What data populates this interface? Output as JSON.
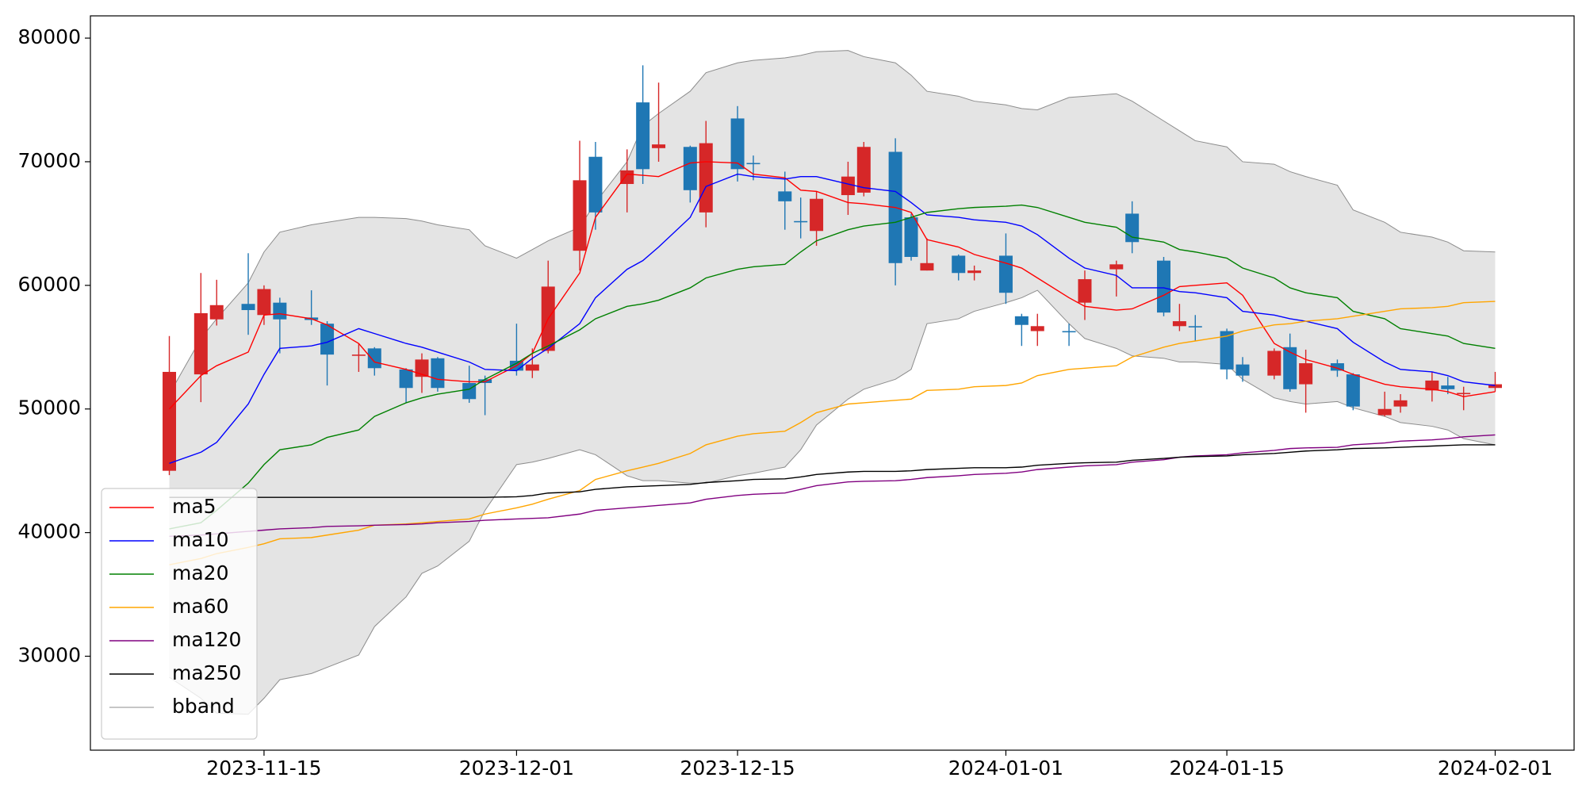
{
  "chart_data": {
    "type": "candlestick",
    "up_color": "#d62728",
    "down_color": "#1f77b4",
    "x": [
      "2023-11-09",
      "2023-11-11",
      "2023-11-12",
      "2023-11-14",
      "2023-11-15",
      "2023-11-16",
      "2023-11-18",
      "2023-11-19",
      "2023-11-21",
      "2023-11-22",
      "2023-11-24",
      "2023-11-25",
      "2023-11-26",
      "2023-11-28",
      "2023-11-29",
      "2023-12-01",
      "2023-12-02",
      "2023-12-03",
      "2023-12-05",
      "2023-12-06",
      "2023-12-08",
      "2023-12-09",
      "2023-12-10",
      "2023-12-12",
      "2023-12-13",
      "2023-12-15",
      "2023-12-16",
      "2023-12-18",
      "2023-12-19",
      "2023-12-20",
      "2023-12-22",
      "2023-12-23",
      "2023-12-25",
      "2023-12-26",
      "2023-12-27",
      "2023-12-29",
      "2023-12-30",
      "2024-01-01",
      "2024-01-02",
      "2024-01-03",
      "2024-01-05",
      "2024-01-06",
      "2024-01-08",
      "2024-01-09",
      "2024-01-11",
      "2024-01-12",
      "2024-01-13",
      "2024-01-15",
      "2024-01-16",
      "2024-01-18",
      "2024-01-19",
      "2024-01-20",
      "2024-01-22",
      "2024-01-23",
      "2024-01-25",
      "2024-01-26",
      "2024-01-28",
      "2024-01-29",
      "2024-01-30",
      "2024-02-01"
    ],
    "open": [
      45000,
      52800,
      57250,
      58500,
      57600,
      58600,
      57400,
      56900,
      54300,
      54900,
      53200,
      52600,
      54100,
      52100,
      52400,
      53900,
      53100,
      54700,
      62800,
      70400,
      68200,
      74800,
      71100,
      71200,
      65900,
      73500,
      69900,
      67600,
      65200,
      64400,
      67300,
      67500,
      70800,
      65500,
      61200,
      62400,
      61000,
      62400,
      57500,
      56300,
      56300,
      58600,
      61300,
      65800,
      62000,
      56700,
      56700,
      56300,
      53600,
      52700,
      55000,
      52000,
      53700,
      52800,
      49500,
      50200,
      51500,
      51900,
      51200,
      51700
    ],
    "high": [
      55900,
      61000,
      60450,
      62600,
      60000,
      59000,
      59600,
      57100,
      55300,
      55000,
      53300,
      54500,
      54200,
      53500,
      52700,
      56900,
      54900,
      62000,
      71700,
      71600,
      71000,
      77800,
      76400,
      71300,
      73300,
      74500,
      70500,
      69200,
      67100,
      67600,
      70000,
      71600,
      71900,
      65800,
      63800,
      62500,
      61600,
      64200,
      57700,
      57700,
      56900,
      61200,
      62000,
      66800,
      62300,
      58500,
      57600,
      56500,
      54200,
      54900,
      56100,
      54800,
      54000,
      52900,
      51400,
      51200,
      53000,
      52600,
      51800,
      53000
    ],
    "low": [
      44650,
      50550,
      56750,
      56000,
      56800,
      54500,
      56800,
      51900,
      53000,
      52700,
      50500,
      51300,
      51400,
      50500,
      49500,
      52700,
      52500,
      54500,
      61200,
      64500,
      65900,
      68200,
      70000,
      66700,
      64700,
      68400,
      68500,
      64500,
      63800,
      63200,
      65700,
      67200,
      60000,
      62000,
      61200,
      60400,
      60400,
      58500,
      55100,
      55100,
      55100,
      57200,
      59100,
      62600,
      57500,
      56300,
      55500,
      52400,
      52200,
      52400,
      51400,
      49700,
      52600,
      49900,
      49400,
      49700,
      50600,
      51200,
      49900,
      51400
    ],
    "close": [
      53000,
      57750,
      58400,
      58000,
      59700,
      57250,
      57200,
      54400,
      54400,
      53300,
      51700,
      54000,
      51700,
      50800,
      52100,
      53100,
      53600,
      59900,
      68500,
      65900,
      69300,
      69400,
      71400,
      67700,
      71500,
      69400,
      69800,
      66800,
      65100,
      67000,
      68800,
      71200,
      61800,
      62300,
      61800,
      61000,
      61200,
      59400,
      56800,
      56700,
      56200,
      60500,
      61700,
      63500,
      57800,
      57100,
      56600,
      53200,
      52700,
      54700,
      51600,
      53700,
      53100,
      50200,
      50000,
      50700,
      52300,
      51600,
      51300,
      52000
    ],
    "series": [
      {
        "name": "ma5",
        "color": "#ff0000",
        "values": [
          50000,
          52700,
          53500,
          54600,
          57600,
          57700,
          57300,
          56800,
          55300,
          53800,
          53200,
          52800,
          52400,
          52200,
          52200,
          53500,
          54500,
          57300,
          61000,
          65500,
          69000,
          68900,
          68800,
          69900,
          70000,
          69900,
          69000,
          68700,
          67700,
          67600,
          66700,
          66600,
          66300,
          65900,
          63700,
          63100,
          62500,
          61800,
          61400,
          60600,
          59000,
          58300,
          58000,
          58100,
          59200,
          59900,
          60000,
          60200,
          59200,
          55300,
          54600,
          54000,
          53300,
          52800,
          52000,
          51800,
          51600,
          51400,
          51000,
          51400
        ]
      },
      {
        "name": "ma10",
        "color": "#0000ff",
        "values": [
          45600,
          46500,
          47300,
          50400,
          52800,
          54900,
          55100,
          55400,
          56500,
          56100,
          55300,
          55000,
          54600,
          53800,
          53200,
          53100,
          54100,
          54900,
          56900,
          59000,
          61300,
          62000,
          63100,
          65500,
          68000,
          69000,
          68800,
          68600,
          68800,
          68800,
          68200,
          67900,
          67600,
          66700,
          65700,
          65500,
          65300,
          65100,
          64800,
          64100,
          62200,
          61400,
          60800,
          59800,
          59800,
          59500,
          59400,
          59000,
          57900,
          57600,
          57300,
          57100,
          56500,
          55400,
          53800,
          53200,
          53000,
          52700,
          52200,
          51900
        ]
      },
      {
        "name": "ma20",
        "color": "#008000",
        "values": [
          40300,
          40800,
          41800,
          44000,
          45500,
          46700,
          47100,
          47700,
          48300,
          49400,
          50500,
          50900,
          51200,
          51600,
          52400,
          53700,
          54500,
          55100,
          56400,
          57300,
          58300,
          58500,
          58800,
          59800,
          60600,
          61300,
          61500,
          61700,
          62700,
          63600,
          64500,
          64800,
          65100,
          65500,
          65900,
          66200,
          66300,
          66400,
          66500,
          66300,
          65500,
          65100,
          64700,
          63900,
          63500,
          62900,
          62700,
          62200,
          61400,
          60600,
          59800,
          59400,
          59000,
          57900,
          57300,
          56500,
          56100,
          55900,
          55300,
          54900
        ]
      },
      {
        "name": "ma60",
        "color": "#ffa500",
        "values": [
          37400,
          37900,
          38300,
          38800,
          39100,
          39500,
          39600,
          39800,
          40200,
          40600,
          40700,
          40800,
          40900,
          41100,
          41500,
          42000,
          42300,
          42700,
          43400,
          44300,
          45000,
          45300,
          45600,
          46400,
          47100,
          47800,
          48000,
          48200,
          48900,
          49700,
          50400,
          50500,
          50700,
          50800,
          51500,
          51600,
          51800,
          51900,
          52100,
          52700,
          53200,
          53300,
          53500,
          54200,
          55000,
          55300,
          55500,
          55900,
          56300,
          56800,
          56900,
          57100,
          57300,
          57500,
          57900,
          58100,
          58200,
          58300,
          58600,
          58700
        ]
      },
      {
        "name": "ma120",
        "color": "#800080",
        "values": [
          39700,
          39800,
          39900,
          40100,
          40200,
          40300,
          40400,
          40500,
          40550,
          40600,
          40650,
          40700,
          40800,
          40900,
          41000,
          41100,
          41150,
          41200,
          41500,
          41800,
          42000,
          42100,
          42200,
          42400,
          42700,
          43000,
          43100,
          43200,
          43500,
          43800,
          44100,
          44150,
          44200,
          44300,
          44450,
          44600,
          44700,
          44800,
          44900,
          45100,
          45300,
          45400,
          45500,
          45700,
          45900,
          46100,
          46200,
          46300,
          46450,
          46650,
          46800,
          46850,
          46900,
          47100,
          47250,
          47400,
          47500,
          47600,
          47750,
          47900
        ]
      },
      {
        "name": "ma250",
        "color": "#000000",
        "values": [
          42850,
          42850,
          42850,
          42850,
          42850,
          42850,
          42850,
          42850,
          42850,
          42850,
          42850,
          42850,
          42850,
          42850,
          42850,
          42900,
          43000,
          43200,
          43300,
          43500,
          43700,
          43750,
          43800,
          43900,
          44050,
          44200,
          44300,
          44350,
          44500,
          44700,
          44900,
          44950,
          44950,
          45000,
          45100,
          45200,
          45250,
          45250,
          45300,
          45450,
          45600,
          45650,
          45700,
          45850,
          46000,
          46100,
          46150,
          46200,
          46300,
          46400,
          46500,
          46600,
          46700,
          46800,
          46850,
          46900,
          47000,
          47050,
          47100,
          47100
        ]
      }
    ],
    "band": {
      "name": "bband",
      "color": "#8c8c8c",
      "fill": "#e4e4e4",
      "upper": [
        51200,
        55700,
        57300,
        60200,
        62700,
        64300,
        64900,
        65100,
        65500,
        65500,
        65400,
        65200,
        64900,
        64500,
        63200,
        62200,
        62900,
        63600,
        64700,
        66700,
        70000,
        72900,
        73900,
        75700,
        77200,
        78000,
        78200,
        78400,
        78600,
        78900,
        79000,
        78500,
        78000,
        77000,
        75700,
        75300,
        74900,
        74600,
        74300,
        74200,
        75200,
        75300,
        75500,
        74900,
        73300,
        72500,
        71700,
        71200,
        70000,
        69800,
        69200,
        68800,
        68100,
        66100,
        65100,
        64300,
        63900,
        63500,
        62800,
        62700
      ],
      "lower": [
        28300,
        26600,
        25400,
        25300,
        26600,
        28100,
        28600,
        29100,
        30100,
        32400,
        34800,
        36700,
        37300,
        39300,
        41800,
        45500,
        45700,
        46000,
        46700,
        46300,
        44600,
        44200,
        44200,
        44000,
        44000,
        44600,
        44800,
        45300,
        46700,
        48700,
        50800,
        51600,
        52400,
        53200,
        56900,
        57300,
        57900,
        58600,
        59000,
        59600,
        56900,
        55700,
        54900,
        54300,
        54100,
        53800,
        53800,
        53600,
        52400,
        50900,
        50600,
        50400,
        50600,
        50100,
        49400,
        48900,
        48600,
        48300,
        47600,
        47100
      ]
    },
    "xlim": [
      "2023-11-04",
      "2024-02-06"
    ],
    "xticks": [
      "2023-11-15",
      "2023-12-01",
      "2023-12-15",
      "2024-01-01",
      "2024-01-15",
      "2024-02-01"
    ],
    "ylim": [
      22400,
      81800
    ],
    "yticks": [
      30000,
      40000,
      50000,
      60000,
      70000,
      80000
    ],
    "grid": false,
    "legend": "lower left"
  }
}
